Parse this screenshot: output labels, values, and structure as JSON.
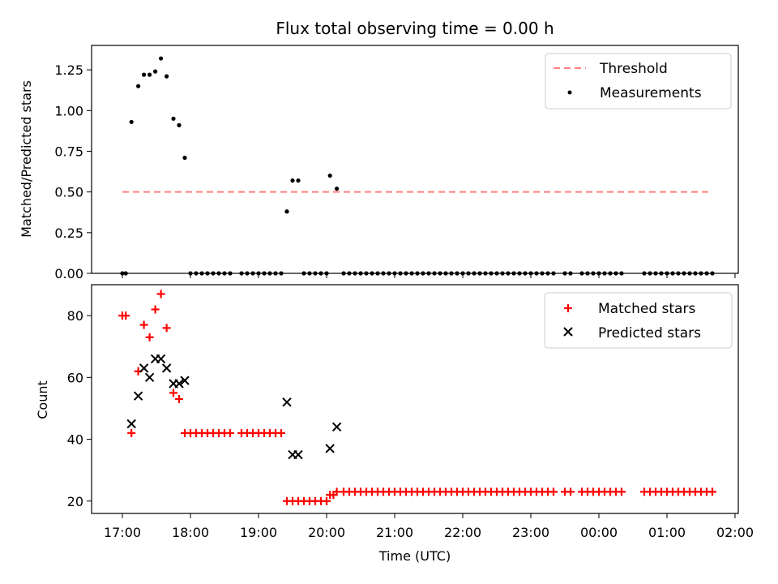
{
  "chart_data": [
    {
      "type": "scatter",
      "title": "Flux total observing time = 0.00 h",
      "xlabel": "",
      "ylabel": "Matched/Predicted stars",
      "ylim": [
        0,
        1.4
      ],
      "xlim": [
        "16:45",
        "02:00"
      ],
      "yticks": [
        "0.00",
        "0.25",
        "0.50",
        "0.75",
        "1.00",
        "1.25"
      ],
      "legend_position": "top-right",
      "threshold": {
        "name": "Threshold",
        "y": 0.5,
        "x_start": "17:00",
        "x_end": "01:40",
        "style": "dashed",
        "color": "#ff7f7f"
      },
      "series": [
        {
          "name": "Measurements",
          "color": "#000000",
          "marker": "dot",
          "points": [
            [
              "17:00",
              0.0
            ],
            [
              "17:03",
              0.0
            ],
            [
              "17:08",
              0.93
            ],
            [
              "17:14",
              1.15
            ],
            [
              "17:19",
              1.22
            ],
            [
              "17:24",
              1.22
            ],
            [
              "17:29",
              1.24
            ],
            [
              "17:34",
              1.32
            ],
            [
              "17:39",
              1.21
            ],
            [
              "17:45",
              0.95
            ],
            [
              "17:50",
              0.91
            ],
            [
              "17:55",
              0.71
            ],
            [
              "18:00",
              0.0
            ],
            [
              "18:05",
              0.0
            ],
            [
              "18:10",
              0.0
            ],
            [
              "18:15",
              0.0
            ],
            [
              "18:20",
              0.0
            ],
            [
              "18:25",
              0.0
            ],
            [
              "18:30",
              0.0
            ],
            [
              "18:35",
              0.0
            ],
            [
              "18:45",
              0.0
            ],
            [
              "18:50",
              0.0
            ],
            [
              "18:55",
              0.0
            ],
            [
              "19:00",
              0.0
            ],
            [
              "19:05",
              0.0
            ],
            [
              "19:10",
              0.0
            ],
            [
              "19:15",
              0.0
            ],
            [
              "19:20",
              0.0
            ],
            [
              "19:25",
              0.38
            ],
            [
              "19:30",
              0.57
            ],
            [
              "19:35",
              0.57
            ],
            [
              "19:40",
              0.0
            ],
            [
              "19:45",
              0.0
            ],
            [
              "19:50",
              0.0
            ],
            [
              "19:55",
              0.0
            ],
            [
              "20:00",
              0.0
            ],
            [
              "20:03",
              0.6
            ],
            [
              "20:09",
              0.52
            ],
            [
              "20:15",
              0.0
            ],
            [
              "20:20",
              0.0
            ],
            [
              "20:25",
              0.0
            ],
            [
              "20:30",
              0.0
            ],
            [
              "20:35",
              0.0
            ],
            [
              "20:40",
              0.0
            ],
            [
              "20:45",
              0.0
            ],
            [
              "20:50",
              0.0
            ],
            [
              "20:55",
              0.0
            ],
            [
              "21:00",
              0.0
            ],
            [
              "21:05",
              0.0
            ],
            [
              "21:10",
              0.0
            ],
            [
              "21:15",
              0.0
            ],
            [
              "21:20",
              0.0
            ],
            [
              "21:25",
              0.0
            ],
            [
              "21:30",
              0.0
            ],
            [
              "21:35",
              0.0
            ],
            [
              "21:40",
              0.0
            ],
            [
              "21:45",
              0.0
            ],
            [
              "21:50",
              0.0
            ],
            [
              "21:55",
              0.0
            ],
            [
              "22:00",
              0.0
            ],
            [
              "22:05",
              0.0
            ],
            [
              "22:10",
              0.0
            ],
            [
              "22:15",
              0.0
            ],
            [
              "22:20",
              0.0
            ],
            [
              "22:25",
              0.0
            ],
            [
              "22:30",
              0.0
            ],
            [
              "22:35",
              0.0
            ],
            [
              "22:40",
              0.0
            ],
            [
              "22:45",
              0.0
            ],
            [
              "22:50",
              0.0
            ],
            [
              "22:55",
              0.0
            ],
            [
              "23:00",
              0.0
            ],
            [
              "23:05",
              0.0
            ],
            [
              "23:10",
              0.0
            ],
            [
              "23:15",
              0.0
            ],
            [
              "23:20",
              0.0
            ],
            [
              "23:30",
              0.0
            ],
            [
              "23:35",
              0.0
            ],
            [
              "23:45",
              0.0
            ],
            [
              "23:50",
              0.0
            ],
            [
              "23:55",
              0.0
            ],
            [
              "00:00",
              0.0
            ],
            [
              "00:05",
              0.0
            ],
            [
              "00:10",
              0.0
            ],
            [
              "00:15",
              0.0
            ],
            [
              "00:20",
              0.0
            ],
            [
              "00:40",
              0.0
            ],
            [
              "00:45",
              0.0
            ],
            [
              "00:50",
              0.0
            ],
            [
              "00:55",
              0.0
            ],
            [
              "01:00",
              0.0
            ],
            [
              "01:05",
              0.0
            ],
            [
              "01:10",
              0.0
            ],
            [
              "01:15",
              0.0
            ],
            [
              "01:20",
              0.0
            ],
            [
              "01:25",
              0.0
            ],
            [
              "01:30",
              0.0
            ],
            [
              "01:35",
              0.0
            ],
            [
              "01:40",
              0.0
            ]
          ]
        }
      ]
    },
    {
      "type": "scatter",
      "title": "",
      "xlabel": "Time (UTC)",
      "ylabel": "Count",
      "ylim": [
        16,
        90
      ],
      "xlim": [
        "16:45",
        "02:00"
      ],
      "yticks": [
        "20",
        "40",
        "60",
        "80"
      ],
      "xticks": [
        "17:00",
        "18:00",
        "19:00",
        "20:00",
        "21:00",
        "22:00",
        "23:00",
        "00:00",
        "01:00",
        "02:00"
      ],
      "legend_position": "top-right",
      "series": [
        {
          "name": "Matched stars",
          "color": "#ff0000",
          "marker": "plus",
          "points": [
            [
              "17:00",
              80
            ],
            [
              "17:03",
              80
            ],
            [
              "17:08",
              42
            ],
            [
              "17:14",
              62
            ],
            [
              "17:19",
              77
            ],
            [
              "17:24",
              73
            ],
            [
              "17:29",
              82
            ],
            [
              "17:34",
              87
            ],
            [
              "17:39",
              76
            ],
            [
              "17:45",
              55
            ],
            [
              "17:50",
              53
            ],
            [
              "17:55",
              42
            ],
            [
              "18:00",
              42
            ],
            [
              "18:05",
              42
            ],
            [
              "18:10",
              42
            ],
            [
              "18:15",
              42
            ],
            [
              "18:20",
              42
            ],
            [
              "18:25",
              42
            ],
            [
              "18:30",
              42
            ],
            [
              "18:35",
              42
            ],
            [
              "18:45",
              42
            ],
            [
              "18:50",
              42
            ],
            [
              "18:55",
              42
            ],
            [
              "19:00",
              42
            ],
            [
              "19:05",
              42
            ],
            [
              "19:10",
              42
            ],
            [
              "19:15",
              42
            ],
            [
              "19:20",
              42
            ],
            [
              "19:25",
              20
            ],
            [
              "19:30",
              20
            ],
            [
              "19:35",
              20
            ],
            [
              "19:40",
              20
            ],
            [
              "19:45",
              20
            ],
            [
              "19:50",
              20
            ],
            [
              "19:55",
              20
            ],
            [
              "20:00",
              20
            ],
            [
              "20:03",
              22
            ],
            [
              "20:06",
              22
            ],
            [
              "20:09",
              23
            ],
            [
              "20:15",
              23
            ],
            [
              "20:20",
              23
            ],
            [
              "20:25",
              23
            ],
            [
              "20:30",
              23
            ],
            [
              "20:35",
              23
            ],
            [
              "20:40",
              23
            ],
            [
              "20:45",
              23
            ],
            [
              "20:50",
              23
            ],
            [
              "20:55",
              23
            ],
            [
              "21:00",
              23
            ],
            [
              "21:05",
              23
            ],
            [
              "21:10",
              23
            ],
            [
              "21:15",
              23
            ],
            [
              "21:20",
              23
            ],
            [
              "21:25",
              23
            ],
            [
              "21:30",
              23
            ],
            [
              "21:35",
              23
            ],
            [
              "21:40",
              23
            ],
            [
              "21:45",
              23
            ],
            [
              "21:50",
              23
            ],
            [
              "21:55",
              23
            ],
            [
              "22:00",
              23
            ],
            [
              "22:05",
              23
            ],
            [
              "22:10",
              23
            ],
            [
              "22:15",
              23
            ],
            [
              "22:20",
              23
            ],
            [
              "22:25",
              23
            ],
            [
              "22:30",
              23
            ],
            [
              "22:35",
              23
            ],
            [
              "22:40",
              23
            ],
            [
              "22:45",
              23
            ],
            [
              "22:50",
              23
            ],
            [
              "22:55",
              23
            ],
            [
              "23:00",
              23
            ],
            [
              "23:05",
              23
            ],
            [
              "23:10",
              23
            ],
            [
              "23:15",
              23
            ],
            [
              "23:20",
              23
            ],
            [
              "23:30",
              23
            ],
            [
              "23:35",
              23
            ],
            [
              "23:45",
              23
            ],
            [
              "23:50",
              23
            ],
            [
              "23:55",
              23
            ],
            [
              "00:00",
              23
            ],
            [
              "00:05",
              23
            ],
            [
              "00:10",
              23
            ],
            [
              "00:15",
              23
            ],
            [
              "00:20",
              23
            ],
            [
              "00:40",
              23
            ],
            [
              "00:45",
              23
            ],
            [
              "00:50",
              23
            ],
            [
              "00:55",
              23
            ],
            [
              "01:00",
              23
            ],
            [
              "01:05",
              23
            ],
            [
              "01:10",
              23
            ],
            [
              "01:15",
              23
            ],
            [
              "01:20",
              23
            ],
            [
              "01:25",
              23
            ],
            [
              "01:30",
              23
            ],
            [
              "01:35",
              23
            ],
            [
              "01:40",
              23
            ]
          ]
        },
        {
          "name": "Predicted stars",
          "color": "#000000",
          "marker": "x",
          "points": [
            [
              "17:08",
              45
            ],
            [
              "17:14",
              54
            ],
            [
              "17:19",
              63
            ],
            [
              "17:24",
              60
            ],
            [
              "17:29",
              66
            ],
            [
              "17:34",
              66
            ],
            [
              "17:39",
              63
            ],
            [
              "17:45",
              58
            ],
            [
              "17:50",
              58
            ],
            [
              "17:55",
              59
            ],
            [
              "19:25",
              52
            ],
            [
              "19:30",
              35
            ],
            [
              "19:35",
              35
            ],
            [
              "20:03",
              37
            ],
            [
              "20:09",
              44
            ]
          ]
        }
      ]
    }
  ]
}
